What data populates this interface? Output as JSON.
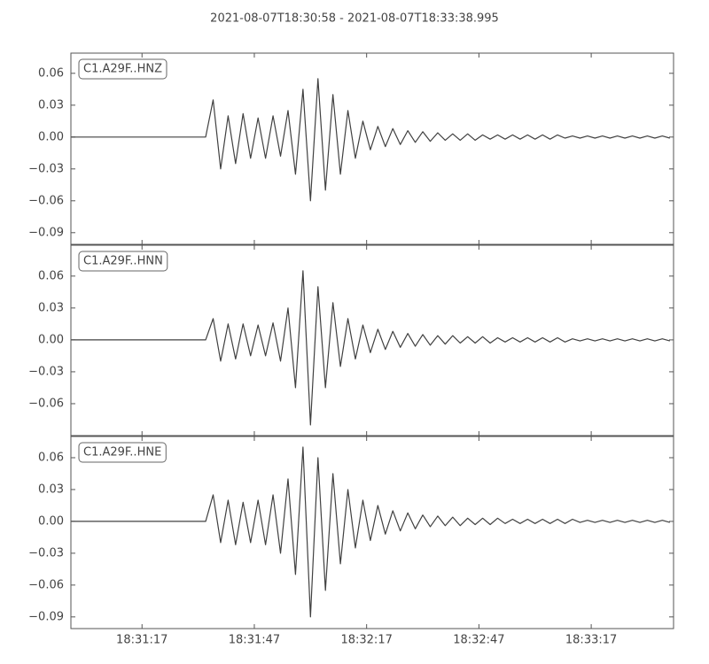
{
  "title": "2021-08-07T18:30:58  -  2021-08-07T18:33:38.995",
  "chart_data": [
    {
      "type": "line",
      "annotation": "C1.A29F..HNZ",
      "color": "#404040",
      "x": [
        0,
        2,
        4,
        6,
        8,
        10,
        12,
        14,
        16,
        18,
        20,
        22,
        24,
        26,
        28,
        30,
        32,
        34,
        36,
        38,
        40,
        42,
        44,
        46,
        48,
        50,
        52,
        54,
        56,
        58,
        60,
        62,
        64,
        66,
        68,
        70,
        72,
        74,
        76,
        78,
        80,
        82,
        84,
        86,
        88,
        90,
        92,
        94,
        96,
        98,
        100,
        102,
        104,
        106,
        108,
        110,
        112,
        114,
        116,
        118,
        120,
        122,
        124,
        126,
        128,
        130,
        132,
        134,
        136,
        138,
        140,
        142,
        144,
        146,
        148,
        150,
        152,
        154,
        156,
        158,
        160
      ],
      "values": [
        0,
        0,
        0,
        0,
        0,
        0,
        0,
        0,
        0,
        0,
        0,
        0,
        0,
        0,
        0,
        0,
        0,
        0,
        0,
        0.035,
        -0.03,
        0.02,
        -0.025,
        0.022,
        -0.02,
        0.018,
        -0.02,
        0.02,
        -0.018,
        0.025,
        -0.035,
        0.045,
        -0.06,
        0.055,
        -0.05,
        0.04,
        -0.035,
        0.025,
        -0.02,
        0.015,
        -0.012,
        0.01,
        -0.009,
        0.008,
        -0.007,
        0.006,
        -0.005,
        0.005,
        -0.004,
        0.004,
        -0.003,
        0.003,
        -0.003,
        0.003,
        -0.003,
        0.002,
        -0.002,
        0.002,
        -0.002,
        0.002,
        -0.002,
        0.002,
        -0.002,
        0.002,
        -0.002,
        0.002,
        -0.001,
        0.001,
        -0.001,
        0.001,
        -0.001,
        0.001,
        -0.001,
        0.001,
        -0.001,
        0.001,
        -0.001,
        0.001,
        -0.001,
        0.001,
        -0.001
      ],
      "xlim": [
        0,
        160.995
      ],
      "ylim": [
        -0.101,
        0.079
      ],
      "yticks": [
        {
          "value": -0.09,
          "label": "−0.09"
        },
        {
          "value": -0.06,
          "label": "−0.06"
        },
        {
          "value": -0.03,
          "label": "−0.03"
        },
        {
          "value": 0,
          "label": "0.00"
        },
        0.03,
        0.06
      ]
    },
    {
      "type": "line",
      "annotation": "C1.A29F..HNN",
      "color": "#404040",
      "x": [
        0,
        2,
        4,
        6,
        8,
        10,
        12,
        14,
        16,
        18,
        20,
        22,
        24,
        26,
        28,
        30,
        32,
        34,
        36,
        38,
        40,
        42,
        44,
        46,
        48,
        50,
        52,
        54,
        56,
        58,
        60,
        62,
        64,
        66,
        68,
        70,
        72,
        74,
        76,
        78,
        80,
        82,
        84,
        86,
        88,
        90,
        92,
        94,
        96,
        98,
        100,
        102,
        104,
        106,
        108,
        110,
        112,
        114,
        116,
        118,
        120,
        122,
        124,
        126,
        128,
        130,
        132,
        134,
        136,
        138,
        140,
        142,
        144,
        146,
        148,
        150,
        152,
        154,
        156,
        158,
        160
      ],
      "values": [
        0,
        0,
        0,
        0,
        0,
        0,
        0,
        0,
        0,
        0,
        0,
        0,
        0,
        0,
        0,
        0,
        0,
        0,
        0,
        0.02,
        -0.02,
        0.015,
        -0.018,
        0.015,
        -0.015,
        0.014,
        -0.015,
        0.016,
        -0.02,
        0.03,
        -0.045,
        0.065,
        -0.08,
        0.05,
        -0.045,
        0.035,
        -0.025,
        0.02,
        -0.018,
        0.014,
        -0.012,
        0.01,
        -0.009,
        0.008,
        -0.007,
        0.006,
        -0.006,
        0.005,
        -0.005,
        0.004,
        -0.004,
        0.004,
        -0.003,
        0.003,
        -0.003,
        0.003,
        -0.003,
        0.002,
        -0.002,
        0.002,
        -0.002,
        0.002,
        -0.002,
        0.002,
        -0.002,
        0.002,
        -0.002,
        0.001,
        -0.001,
        0.001,
        -0.001,
        0.001,
        -0.001,
        0.001,
        -0.001,
        0.001,
        -0.001,
        0.001,
        -0.001,
        0.001,
        -0.001
      ],
      "xlim": [
        0,
        160.995
      ],
      "ylim": [
        -0.09,
        0.089
      ],
      "yticks": [
        {
          "value": -0.06,
          "label": "−0.06"
        },
        {
          "value": -0.03,
          "label": "−0.03"
        },
        {
          "value": 0,
          "label": "0.00"
        },
        0.03,
        0.06
      ]
    },
    {
      "type": "line",
      "annotation": "C1.A29F..HNE",
      "color": "#404040",
      "x": [
        0,
        2,
        4,
        6,
        8,
        10,
        12,
        14,
        16,
        18,
        20,
        22,
        24,
        26,
        28,
        30,
        32,
        34,
        36,
        38,
        40,
        42,
        44,
        46,
        48,
        50,
        52,
        54,
        56,
        58,
        60,
        62,
        64,
        66,
        68,
        70,
        72,
        74,
        76,
        78,
        80,
        82,
        84,
        86,
        88,
        90,
        92,
        94,
        96,
        98,
        100,
        102,
        104,
        106,
        108,
        110,
        112,
        114,
        116,
        118,
        120,
        122,
        124,
        126,
        128,
        130,
        132,
        134,
        136,
        138,
        140,
        142,
        144,
        146,
        148,
        150,
        152,
        154,
        156,
        158,
        160
      ],
      "values": [
        0,
        0,
        0,
        0,
        0,
        0,
        0,
        0,
        0,
        0,
        0,
        0,
        0,
        0,
        0,
        0,
        0,
        0,
        0,
        0.025,
        -0.02,
        0.02,
        -0.022,
        0.018,
        -0.02,
        0.02,
        -0.022,
        0.025,
        -0.03,
        0.04,
        -0.05,
        0.07,
        -0.09,
        0.06,
        -0.065,
        0.045,
        -0.04,
        0.03,
        -0.025,
        0.02,
        -0.018,
        0.015,
        -0.012,
        0.01,
        -0.009,
        0.008,
        -0.007,
        0.006,
        -0.005,
        0.005,
        -0.004,
        0.004,
        -0.004,
        0.003,
        -0.003,
        0.003,
        -0.003,
        0.003,
        -0.002,
        0.002,
        -0.002,
        0.002,
        -0.002,
        0.002,
        -0.002,
        0.002,
        -0.002,
        0.002,
        -0.001,
        0.001,
        -0.001,
        0.001,
        -0.001,
        0.001,
        -0.001,
        0.001,
        -0.001,
        0.001,
        -0.001,
        0.001,
        -0.001
      ],
      "xlim": [
        0,
        160.995
      ],
      "ylim": [
        -0.101,
        0.08
      ],
      "yticks": [
        {
          "value": -0.09,
          "label": "−0.09"
        },
        {
          "value": -0.06,
          "label": "−0.06"
        },
        {
          "value": -0.03,
          "label": "−0.03"
        },
        {
          "value": 0,
          "label": "0.00"
        },
        0.03,
        0.06
      ],
      "xticks": [
        {
          "value": 19,
          "label": "18:31:17"
        },
        {
          "value": 49,
          "label": "18:31:47"
        },
        {
          "value": 79,
          "label": "18:32:17"
        },
        {
          "value": 109,
          "label": "18:32:47"
        },
        {
          "value": 139,
          "label": "18:33:17"
        }
      ]
    }
  ]
}
